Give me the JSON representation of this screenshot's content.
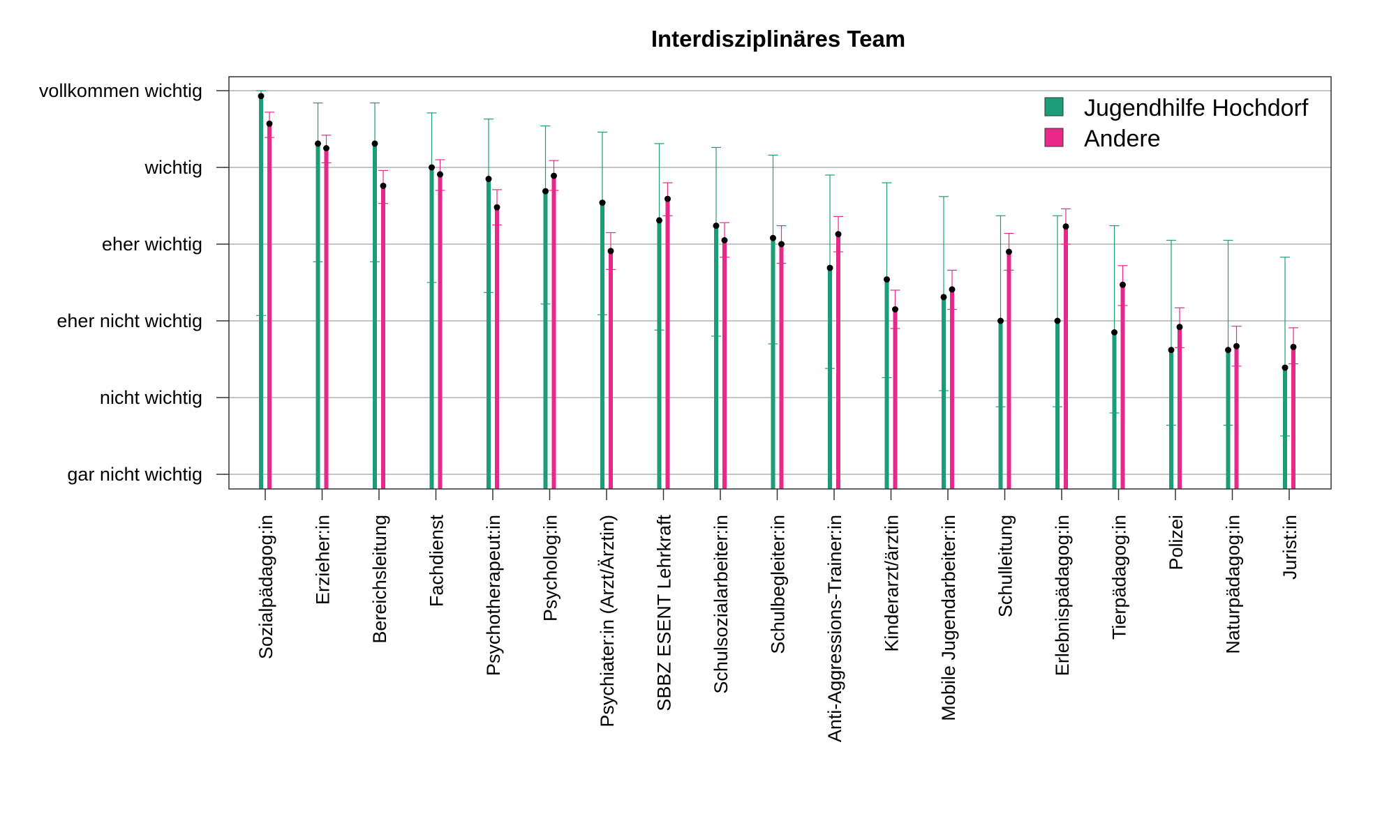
{
  "chart_data": {
    "type": "bar",
    "title": "Interdisziplinäres Team",
    "y_categories": [
      "gar nicht wichtig",
      "nicht wichtig",
      "eher nicht wichtig",
      "eher wichtig",
      "wichtig",
      "vollkommen wichtig"
    ],
    "ylim": [
      -0.2,
      5.2
    ],
    "grid": true,
    "legend_position": "top-right",
    "colors": {
      "Jugendhilfe Hochdorf": "#1b9e77",
      "Andere": "#e7298a"
    },
    "categories": [
      "Sozialpädagog:in",
      "Erzieher:in",
      "Bereichsleitung",
      "Fachdienst",
      "Psychotherapeut:in",
      "Psycholog:in",
      "Psychiater:in (Arzt/Ärztin)",
      "SBBZ ESENT Lehrkraft",
      "Schulsozialarbeiter:in",
      "Schulbegleiter:in",
      "Anti-Aggressions-Trainer:in",
      "Kinderarzt/ärztin",
      "Mobile Jugendarbeiter:in",
      "Schulleitung",
      "Erlebnispädagog:in",
      "Tierpädagog:in",
      "Polizei",
      "Naturpädagog:in",
      "Jurist:in"
    ],
    "series": [
      {
        "name": "Jugendhilfe Hochdorf",
        "values": [
          4.93,
          4.31,
          4.31,
          4.0,
          3.85,
          3.69,
          3.54,
          3.31,
          3.24,
          3.08,
          2.69,
          2.54,
          2.31,
          2.0,
          2.0,
          1.85,
          1.62,
          1.62,
          1.39
        ],
        "error_low": [
          2.07,
          2.77,
          2.77,
          2.5,
          2.37,
          2.22,
          2.08,
          1.88,
          1.8,
          1.7,
          1.38,
          1.26,
          1.09,
          0.88,
          0.88,
          0.8,
          0.64,
          0.64,
          0.5
        ],
        "error_high": [
          5.0,
          4.84,
          4.84,
          4.71,
          4.63,
          4.54,
          4.46,
          4.31,
          4.26,
          4.16,
          3.9,
          3.8,
          3.62,
          3.37,
          3.37,
          3.24,
          3.05,
          3.05,
          2.83
        ]
      },
      {
        "name": "Andere",
        "values": [
          4.57,
          4.25,
          3.76,
          3.91,
          3.48,
          3.89,
          2.91,
          3.59,
          3.05,
          3.0,
          3.13,
          2.15,
          2.41,
          2.9,
          3.23,
          2.47,
          1.92,
          1.67,
          1.66
        ],
        "error_low": [
          4.39,
          4.06,
          3.53,
          3.7,
          3.25,
          3.7,
          2.67,
          3.37,
          2.83,
          2.75,
          2.9,
          1.9,
          2.15,
          2.66,
          3.0,
          2.2,
          1.65,
          1.41,
          1.44
        ],
        "error_high": [
          4.72,
          4.42,
          3.96,
          4.1,
          3.71,
          4.09,
          3.15,
          3.8,
          3.28,
          3.24,
          3.36,
          2.4,
          2.66,
          3.14,
          3.46,
          2.72,
          2.17,
          1.93,
          1.91
        ]
      }
    ]
  }
}
